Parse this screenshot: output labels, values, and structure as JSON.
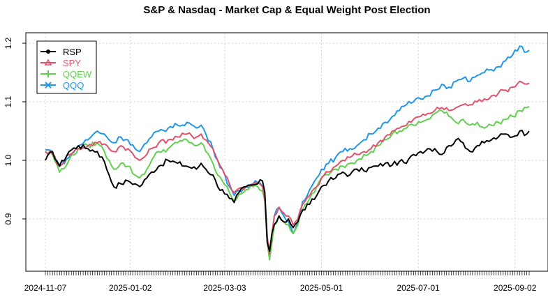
{
  "chart_data": {
    "type": "line",
    "title": "S&P & Nasdaq - Market Cap & Equal Weight Post Election",
    "xlabel": "",
    "ylabel": "",
    "ylim": [
      0.815,
      1.22
    ],
    "grid": true,
    "legend_position": "top-left",
    "x_tick_labels": [
      "2024-11-07",
      "2025-01-02",
      "2025-03-03",
      "2025-05-01",
      "2025-07-01",
      "2025-09-02"
    ],
    "x_tick_index": [
      0,
      36,
      76,
      117,
      158,
      199
    ],
    "y_ticks": [
      0.9,
      1.0,
      1.1,
      1.2
    ],
    "y_tick_labels": [
      "0.9",
      "1.0",
      "1.1",
      "1.2"
    ],
    "n_points": 206,
    "series": [
      {
        "name": "RSP",
        "color": "#000000",
        "marker": "filled-circle",
        "keypoints": [
          [
            0,
            1.0
          ],
          [
            3,
            1.015
          ],
          [
            6,
            0.99
          ],
          [
            10,
            1.015
          ],
          [
            14,
            1.025
          ],
          [
            18,
            1.02
          ],
          [
            22,
            1.015
          ],
          [
            25,
            0.998
          ],
          [
            27,
            0.975
          ],
          [
            29,
            0.955
          ],
          [
            32,
            0.96
          ],
          [
            35,
            0.965
          ],
          [
            38,
            0.96
          ],
          [
            40,
            0.955
          ],
          [
            43,
            0.97
          ],
          [
            45,
            0.98
          ],
          [
            48,
            0.99
          ],
          [
            52,
            1.0
          ],
          [
            56,
            0.995
          ],
          [
            60,
            0.99
          ],
          [
            64,
            0.985
          ],
          [
            66,
            0.995
          ],
          [
            68,
            0.985
          ],
          [
            71,
            0.975
          ],
          [
            73,
            0.955
          ],
          [
            75,
            0.95
          ],
          [
            78,
            0.935
          ],
          [
            80,
            0.928
          ],
          [
            82,
            0.945
          ],
          [
            85,
            0.955
          ],
          [
            88,
            0.958
          ],
          [
            90,
            0.96
          ],
          [
            92,
            0.965
          ],
          [
            93,
            0.945
          ],
          [
            94,
            0.86
          ],
          [
            95,
            0.845
          ],
          [
            96,
            0.875
          ],
          [
            97,
            0.89
          ],
          [
            99,
            0.905
          ],
          [
            101,
            0.895
          ],
          [
            103,
            0.9
          ],
          [
            105,
            0.885
          ],
          [
            107,
            0.895
          ],
          [
            109,
            0.915
          ],
          [
            112,
            0.925
          ],
          [
            115,
            0.94
          ],
          [
            117,
            0.955
          ],
          [
            120,
            0.965
          ],
          [
            123,
            0.97
          ],
          [
            126,
            0.98
          ],
          [
            129,
            0.975
          ],
          [
            132,
            0.985
          ],
          [
            135,
            0.982
          ],
          [
            138,
            0.988
          ],
          [
            141,
            0.99
          ],
          [
            144,
            0.995
          ],
          [
            147,
            0.992
          ],
          [
            150,
            0.998
          ],
          [
            153,
            0.995
          ],
          [
            156,
            1.01
          ],
          [
            159,
            1.015
          ],
          [
            162,
            1.02
          ],
          [
            165,
            1.02
          ],
          [
            168,
            1.01
          ],
          [
            171,
            1.025
          ],
          [
            174,
            1.035
          ],
          [
            177,
            1.03
          ],
          [
            180,
            1.015
          ],
          [
            183,
            1.025
          ],
          [
            186,
            1.03
          ],
          [
            189,
            1.035
          ],
          [
            192,
            1.04
          ],
          [
            195,
            1.045
          ],
          [
            198,
            1.04
          ],
          [
            201,
            1.05
          ],
          [
            204,
            1.045
          ],
          [
            205,
            1.05
          ]
        ]
      },
      {
        "name": "SPY",
        "color": "#df536b",
        "marker": "triangle",
        "keypoints": [
          [
            0,
            1.015
          ],
          [
            3,
            1.012
          ],
          [
            6,
            0.99
          ],
          [
            10,
            1.01
          ],
          [
            14,
            1.02
          ],
          [
            18,
            1.025
          ],
          [
            22,
            1.03
          ],
          [
            25,
            1.028
          ],
          [
            27,
            1.02
          ],
          [
            29,
            1.015
          ],
          [
            32,
            1.025
          ],
          [
            35,
            1.02
          ],
          [
            38,
            1.005
          ],
          [
            40,
            1.0
          ],
          [
            43,
            1.01
          ],
          [
            45,
            1.02
          ],
          [
            48,
            1.03
          ],
          [
            52,
            1.035
          ],
          [
            56,
            1.04
          ],
          [
            60,
            1.045
          ],
          [
            64,
            1.04
          ],
          [
            66,
            1.045
          ],
          [
            68,
            1.035
          ],
          [
            71,
            1.02
          ],
          [
            73,
            1.0
          ],
          [
            75,
            0.985
          ],
          [
            78,
            0.96
          ],
          [
            80,
            0.945
          ],
          [
            82,
            0.952
          ],
          [
            85,
            0.955
          ],
          [
            88,
            0.96
          ],
          [
            90,
            0.962
          ],
          [
            92,
            0.955
          ],
          [
            93,
            0.935
          ],
          [
            94,
            0.87
          ],
          [
            95,
            0.84
          ],
          [
            96,
            0.875
          ],
          [
            97,
            0.905
          ],
          [
            99,
            0.92
          ],
          [
            101,
            0.91
          ],
          [
            103,
            0.905
          ],
          [
            105,
            0.89
          ],
          [
            107,
            0.9
          ],
          [
            109,
            0.925
          ],
          [
            112,
            0.94
          ],
          [
            115,
            0.955
          ],
          [
            117,
            0.97
          ],
          [
            120,
            0.98
          ],
          [
            123,
            0.99
          ],
          [
            126,
            1.0
          ],
          [
            129,
            1.005
          ],
          [
            132,
            1.01
          ],
          [
            135,
            1.015
          ],
          [
            138,
            1.02
          ],
          [
            141,
            1.03
          ],
          [
            144,
            1.04
          ],
          [
            147,
            1.05
          ],
          [
            150,
            1.055
          ],
          [
            153,
            1.06
          ],
          [
            156,
            1.07
          ],
          [
            159,
            1.075
          ],
          [
            162,
            1.08
          ],
          [
            165,
            1.085
          ],
          [
            168,
            1.09
          ],
          [
            171,
            1.085
          ],
          [
            174,
            1.09
          ],
          [
            177,
            1.095
          ],
          [
            180,
            1.095
          ],
          [
            183,
            1.1
          ],
          [
            186,
            1.105
          ],
          [
            189,
            1.11
          ],
          [
            192,
            1.115
          ],
          [
            195,
            1.12
          ],
          [
            198,
            1.125
          ],
          [
            201,
            1.135
          ],
          [
            204,
            1.13
          ],
          [
            205,
            1.132
          ]
        ]
      },
      {
        "name": "QQEW",
        "color": "#61d04f",
        "marker": "cross",
        "keypoints": [
          [
            0,
            1.015
          ],
          [
            3,
            1.01
          ],
          [
            6,
            0.98
          ],
          [
            10,
            1.0
          ],
          [
            14,
            1.02
          ],
          [
            18,
            1.025
          ],
          [
            22,
            1.03
          ],
          [
            25,
            1.015
          ],
          [
            27,
            1.0
          ],
          [
            29,
            0.985
          ],
          [
            32,
            0.995
          ],
          [
            35,
            0.99
          ],
          [
            38,
            0.975
          ],
          [
            40,
            0.97
          ],
          [
            43,
            0.985
          ],
          [
            45,
            1.0
          ],
          [
            48,
            1.015
          ],
          [
            52,
            1.02
          ],
          [
            56,
            1.03
          ],
          [
            60,
            1.035
          ],
          [
            64,
            1.025
          ],
          [
            66,
            1.03
          ],
          [
            68,
            1.015
          ],
          [
            71,
            0.995
          ],
          [
            73,
            0.975
          ],
          [
            75,
            0.965
          ],
          [
            78,
            0.945
          ],
          [
            80,
            0.93
          ],
          [
            82,
            0.942
          ],
          [
            85,
            0.95
          ],
          [
            88,
            0.955
          ],
          [
            90,
            0.955
          ],
          [
            92,
            0.948
          ],
          [
            93,
            0.93
          ],
          [
            94,
            0.86
          ],
          [
            95,
            0.83
          ],
          [
            96,
            0.86
          ],
          [
            97,
            0.89
          ],
          [
            99,
            0.905
          ],
          [
            101,
            0.895
          ],
          [
            103,
            0.89
          ],
          [
            105,
            0.875
          ],
          [
            107,
            0.89
          ],
          [
            109,
            0.915
          ],
          [
            112,
            0.935
          ],
          [
            115,
            0.955
          ],
          [
            117,
            0.97
          ],
          [
            120,
            0.975
          ],
          [
            123,
            0.985
          ],
          [
            126,
            0.99
          ],
          [
            129,
            0.995
          ],
          [
            132,
            1.0
          ],
          [
            135,
            1.01
          ],
          [
            138,
            1.015
          ],
          [
            141,
            1.025
          ],
          [
            144,
            1.035
          ],
          [
            147,
            1.045
          ],
          [
            150,
            1.05
          ],
          [
            153,
            1.055
          ],
          [
            156,
            1.06
          ],
          [
            159,
            1.065
          ],
          [
            162,
            1.07
          ],
          [
            165,
            1.08
          ],
          [
            168,
            1.085
          ],
          [
            171,
            1.075
          ],
          [
            174,
            1.065
          ],
          [
            177,
            1.07
          ],
          [
            180,
            1.06
          ],
          [
            183,
            1.065
          ],
          [
            186,
            1.055
          ],
          [
            189,
            1.06
          ],
          [
            192,
            1.065
          ],
          [
            195,
            1.07
          ],
          [
            198,
            1.075
          ],
          [
            201,
            1.085
          ],
          [
            204,
            1.09
          ],
          [
            205,
            1.092
          ]
        ]
      },
      {
        "name": "QQQ",
        "color": "#2297e6",
        "marker": "x",
        "keypoints": [
          [
            0,
            1.018
          ],
          [
            3,
            1.015
          ],
          [
            6,
            0.992
          ],
          [
            10,
            1.005
          ],
          [
            14,
            1.025
          ],
          [
            18,
            1.035
          ],
          [
            22,
            1.05
          ],
          [
            25,
            1.045
          ],
          [
            27,
            1.035
          ],
          [
            29,
            1.03
          ],
          [
            32,
            1.04
          ],
          [
            35,
            1.035
          ],
          [
            38,
            1.02
          ],
          [
            40,
            1.015
          ],
          [
            43,
            1.03
          ],
          [
            45,
            1.04
          ],
          [
            48,
            1.05
          ],
          [
            52,
            1.055
          ],
          [
            56,
            1.06
          ],
          [
            60,
            1.065
          ],
          [
            64,
            1.055
          ],
          [
            66,
            1.06
          ],
          [
            68,
            1.045
          ],
          [
            71,
            1.02
          ],
          [
            73,
            1.0
          ],
          [
            75,
            0.985
          ],
          [
            78,
            0.955
          ],
          [
            80,
            0.94
          ],
          [
            82,
            0.948
          ],
          [
            85,
            0.955
          ],
          [
            88,
            0.96
          ],
          [
            90,
            0.962
          ],
          [
            92,
            0.955
          ],
          [
            93,
            0.935
          ],
          [
            94,
            0.87
          ],
          [
            95,
            0.835
          ],
          [
            96,
            0.87
          ],
          [
            97,
            0.905
          ],
          [
            99,
            0.92
          ],
          [
            101,
            0.905
          ],
          [
            103,
            0.895
          ],
          [
            105,
            0.875
          ],
          [
            107,
            0.895
          ],
          [
            109,
            0.93
          ],
          [
            112,
            0.95
          ],
          [
            115,
            0.97
          ],
          [
            117,
            0.985
          ],
          [
            120,
            0.995
          ],
          [
            123,
            1.005
          ],
          [
            126,
            1.015
          ],
          [
            129,
            1.02
          ],
          [
            132,
            1.025
          ],
          [
            135,
            1.035
          ],
          [
            138,
            1.045
          ],
          [
            141,
            1.055
          ],
          [
            144,
            1.065
          ],
          [
            147,
            1.075
          ],
          [
            150,
            1.085
          ],
          [
            153,
            1.095
          ],
          [
            156,
            1.1
          ],
          [
            159,
            1.105
          ],
          [
            162,
            1.11
          ],
          [
            165,
            1.12
          ],
          [
            168,
            1.13
          ],
          [
            171,
            1.125
          ],
          [
            174,
            1.135
          ],
          [
            177,
            1.14
          ],
          [
            180,
            1.135
          ],
          [
            183,
            1.145
          ],
          [
            186,
            1.15
          ],
          [
            189,
            1.155
          ],
          [
            192,
            1.16
          ],
          [
            195,
            1.17
          ],
          [
            198,
            1.18
          ],
          [
            201,
            1.195
          ],
          [
            204,
            1.185
          ],
          [
            205,
            1.188
          ]
        ]
      }
    ]
  }
}
